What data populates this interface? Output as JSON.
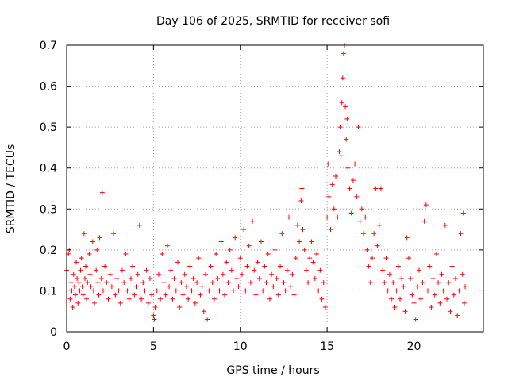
{
  "chart_data": {
    "type": "scatter",
    "title": "Day 106 of 2025, SRMTID for receiver sofi",
    "xlabel": "GPS time / hours",
    "ylabel": "SRMTID / TECUs",
    "xlim": [
      0,
      24
    ],
    "ylim": [
      0,
      0.7
    ],
    "xticks": [
      0,
      5,
      10,
      15,
      20
    ],
    "xtick_labels": [
      "0",
      "5",
      "10",
      "15",
      "20"
    ],
    "yticks": [
      0,
      0.1,
      0.2,
      0.3,
      0.4,
      0.5,
      0.6,
      0.7
    ],
    "ytick_labels": [
      "0",
      "0.1",
      "0.2",
      "0.3",
      "0.4",
      "0.5",
      "0.6",
      "0.7"
    ],
    "grid": true,
    "marker": "+",
    "color": "#ff0000",
    "series": [
      {
        "name": "SRMTID",
        "points": [
          [
            0.0,
            0.15
          ],
          [
            0.1,
            0.19
          ],
          [
            0.15,
            0.2
          ],
          [
            0.2,
            0.08
          ],
          [
            0.25,
            0.12
          ],
          [
            0.3,
            0.1
          ],
          [
            0.35,
            0.06
          ],
          [
            0.4,
            0.14
          ],
          [
            0.45,
            0.11
          ],
          [
            0.5,
            0.09
          ],
          [
            0.55,
            0.17
          ],
          [
            0.6,
            0.13
          ],
          [
            0.65,
            0.07
          ],
          [
            0.7,
            0.12
          ],
          [
            0.75,
            0.1
          ],
          [
            0.8,
            0.15
          ],
          [
            0.85,
            0.18
          ],
          [
            0.9,
            0.11
          ],
          [
            0.95,
            0.09
          ],
          [
            1.0,
            0.24
          ],
          [
            1.05,
            0.13
          ],
          [
            1.1,
            0.16
          ],
          [
            1.15,
            0.08
          ],
          [
            1.2,
            0.12
          ],
          [
            1.3,
            0.19
          ],
          [
            1.35,
            0.14
          ],
          [
            1.4,
            0.11
          ],
          [
            1.5,
            0.22
          ],
          [
            1.55,
            0.1
          ],
          [
            1.6,
            0.07
          ],
          [
            1.7,
            0.15
          ],
          [
            1.75,
            0.2
          ],
          [
            1.8,
            0.12
          ],
          [
            1.85,
            0.09
          ],
          [
            1.9,
            0.23
          ],
          [
            2.0,
            0.13
          ],
          [
            2.05,
            0.34
          ],
          [
            2.1,
            0.1
          ],
          [
            2.2,
            0.16
          ],
          [
            2.3,
            0.12
          ],
          [
            2.4,
            0.08
          ],
          [
            2.5,
            0.14
          ],
          [
            2.6,
            0.11
          ],
          [
            2.7,
            0.24
          ],
          [
            2.8,
            0.09
          ],
          [
            2.9,
            0.13
          ],
          [
            3.0,
            0.1
          ],
          [
            3.1,
            0.07
          ],
          [
            3.2,
            0.15
          ],
          [
            3.3,
            0.12
          ],
          [
            3.4,
            0.19
          ],
          [
            3.5,
            0.1
          ],
          [
            3.6,
            0.08
          ],
          [
            3.7,
            0.13
          ],
          [
            3.8,
            0.16
          ],
          [
            3.9,
            0.09
          ],
          [
            4.0,
            0.11
          ],
          [
            4.1,
            0.14
          ],
          [
            4.2,
            0.26
          ],
          [
            4.3,
            0.08
          ],
          [
            4.4,
            0.12
          ],
          [
            4.5,
            0.1
          ],
          [
            4.6,
            0.15
          ],
          [
            4.7,
            0.07
          ],
          [
            4.8,
            0.13
          ],
          [
            4.9,
            0.09
          ],
          [
            5.0,
            0.04
          ],
          [
            5.05,
            0.03
          ],
          [
            5.1,
            0.06
          ],
          [
            5.2,
            0.1
          ],
          [
            5.3,
            0.14
          ],
          [
            5.4,
            0.08
          ],
          [
            5.5,
            0.19
          ],
          [
            5.6,
            0.12
          ],
          [
            5.7,
            0.09
          ],
          [
            5.8,
            0.21
          ],
          [
            5.9,
            0.11
          ],
          [
            6.0,
            0.15
          ],
          [
            6.1,
            0.08
          ],
          [
            6.2,
            0.13
          ],
          [
            6.3,
            0.1
          ],
          [
            6.4,
            0.17
          ],
          [
            6.5,
            0.06
          ],
          [
            6.6,
            0.12
          ],
          [
            6.7,
            0.09
          ],
          [
            6.8,
            0.14
          ],
          [
            6.9,
            0.11
          ],
          [
            7.0,
            0.08
          ],
          [
            7.1,
            0.16
          ],
          [
            7.2,
            0.1
          ],
          [
            7.3,
            0.13
          ],
          [
            7.4,
            0.07
          ],
          [
            7.5,
            0.12
          ],
          [
            7.6,
            0.18
          ],
          [
            7.7,
            0.09
          ],
          [
            7.8,
            0.11
          ],
          [
            7.9,
            0.05
          ],
          [
            8.0,
            0.14
          ],
          [
            8.1,
            0.03
          ],
          [
            8.2,
            0.1
          ],
          [
            8.3,
            0.16
          ],
          [
            8.4,
            0.12
          ],
          [
            8.5,
            0.08
          ],
          [
            8.6,
            0.19
          ],
          [
            8.7,
            0.13
          ],
          [
            8.8,
            0.1
          ],
          [
            8.9,
            0.22
          ],
          [
            9.0,
            0.14
          ],
          [
            9.1,
            0.09
          ],
          [
            9.2,
            0.17
          ],
          [
            9.3,
            0.12
          ],
          [
            9.4,
            0.2
          ],
          [
            9.5,
            0.15
          ],
          [
            9.6,
            0.1
          ],
          [
            9.7,
            0.23
          ],
          [
            9.8,
            0.13
          ],
          [
            9.9,
            0.11
          ],
          [
            10.0,
            0.18
          ],
          [
            10.1,
            0.14
          ],
          [
            10.2,
            0.25
          ],
          [
            10.3,
            0.1
          ],
          [
            10.4,
            0.16
          ],
          [
            10.5,
            0.21
          ],
          [
            10.6,
            0.12
          ],
          [
            10.7,
            0.27
          ],
          [
            10.8,
            0.15
          ],
          [
            10.9,
            0.09
          ],
          [
            11.0,
            0.17
          ],
          [
            11.1,
            0.13
          ],
          [
            11.2,
            0.22
          ],
          [
            11.3,
            0.1
          ],
          [
            11.4,
            0.16
          ],
          [
            11.5,
            0.12
          ],
          [
            11.6,
            0.19
          ],
          [
            11.7,
            0.08
          ],
          [
            11.8,
            0.14
          ],
          [
            11.9,
            0.11
          ],
          [
            12.0,
            0.2
          ],
          [
            12.1,
            0.13
          ],
          [
            12.2,
            0.09
          ],
          [
            12.3,
            0.16
          ],
          [
            12.4,
            0.24
          ],
          [
            12.5,
            0.12
          ],
          [
            12.6,
            0.1
          ],
          [
            12.7,
            0.15
          ],
          [
            12.8,
            0.28
          ],
          [
            12.9,
            0.11
          ],
          [
            13.0,
            0.14
          ],
          [
            13.1,
            0.09
          ],
          [
            13.2,
            0.18
          ],
          [
            13.3,
            0.26
          ],
          [
            13.4,
            0.22
          ],
          [
            13.5,
            0.32
          ],
          [
            13.55,
            0.35
          ],
          [
            13.6,
            0.25
          ],
          [
            13.7,
            0.2
          ],
          [
            13.8,
            0.15
          ],
          [
            13.9,
            0.12
          ],
          [
            14.0,
            0.18
          ],
          [
            14.1,
            0.22
          ],
          [
            14.2,
            0.17
          ],
          [
            14.3,
            0.13
          ],
          [
            14.4,
            0.19
          ],
          [
            14.5,
            0.1
          ],
          [
            14.6,
            0.15
          ],
          [
            14.7,
            0.08
          ],
          [
            14.8,
            0.12
          ],
          [
            14.9,
            0.06
          ],
          [
            15.0,
            0.28
          ],
          [
            15.05,
            0.41
          ],
          [
            15.1,
            0.33
          ],
          [
            15.2,
            0.25
          ],
          [
            15.3,
            0.36
          ],
          [
            15.4,
            0.3
          ],
          [
            15.5,
            0.38
          ],
          [
            15.6,
            0.28
          ],
          [
            15.7,
            0.44
          ],
          [
            15.75,
            0.5
          ],
          [
            15.8,
            0.43
          ],
          [
            15.85,
            0.56
          ],
          [
            15.9,
            0.62
          ],
          [
            15.95,
            0.68
          ],
          [
            16.0,
            0.7
          ],
          [
            16.05,
            0.55
          ],
          [
            16.1,
            0.47
          ],
          [
            16.15,
            0.52
          ],
          [
            16.2,
            0.4
          ],
          [
            16.3,
            0.35
          ],
          [
            16.4,
            0.29
          ],
          [
            16.5,
            0.37
          ],
          [
            16.6,
            0.41
          ],
          [
            16.7,
            0.33
          ],
          [
            16.8,
            0.5
          ],
          [
            16.9,
            0.27
          ],
          [
            17.0,
            0.3
          ],
          [
            17.1,
            0.24
          ],
          [
            17.2,
            0.28
          ],
          [
            17.3,
            0.2
          ],
          [
            17.4,
            0.16
          ],
          [
            17.5,
            0.12
          ],
          [
            17.6,
            0.18
          ],
          [
            17.7,
            0.24
          ],
          [
            17.8,
            0.35
          ],
          [
            17.9,
            0.21
          ],
          [
            18.0,
            0.26
          ],
          [
            18.1,
            0.35
          ],
          [
            18.2,
            0.15
          ],
          [
            18.3,
            0.12
          ],
          [
            18.4,
            0.18
          ],
          [
            18.5,
            0.1
          ],
          [
            18.6,
            0.14
          ],
          [
            18.7,
            0.08
          ],
          [
            18.8,
            0.12
          ],
          [
            18.9,
            0.06
          ],
          [
            19.0,
            0.1
          ],
          [
            19.1,
            0.16
          ],
          [
            19.2,
            0.08
          ],
          [
            19.3,
            0.13
          ],
          [
            19.4,
            0.11
          ],
          [
            19.5,
            0.05
          ],
          [
            19.6,
            0.23
          ],
          [
            19.7,
            0.18
          ],
          [
            19.8,
            0.13
          ],
          [
            19.9,
            0.09
          ],
          [
            20.0,
            0.07
          ],
          [
            20.1,
            0.03
          ],
          [
            20.2,
            0.11
          ],
          [
            20.3,
            0.15
          ],
          [
            20.4,
            0.08
          ],
          [
            20.5,
            0.12
          ],
          [
            20.6,
            0.27
          ],
          [
            20.7,
            0.31
          ],
          [
            20.8,
            0.1
          ],
          [
            20.9,
            0.16
          ],
          [
            21.0,
            0.06
          ],
          [
            21.1,
            0.13
          ],
          [
            21.2,
            0.09
          ],
          [
            21.3,
            0.19
          ],
          [
            21.4,
            0.12
          ],
          [
            21.5,
            0.07
          ],
          [
            21.6,
            0.14
          ],
          [
            21.7,
            0.1
          ],
          [
            21.8,
            0.26
          ],
          [
            21.9,
            0.08
          ],
          [
            22.0,
            0.12
          ],
          [
            22.1,
            0.05
          ],
          [
            22.2,
            0.16
          ],
          [
            22.3,
            0.09
          ],
          [
            22.4,
            0.13
          ],
          [
            22.5,
            0.04
          ],
          [
            22.6,
            0.1
          ],
          [
            22.7,
            0.24
          ],
          [
            22.8,
            0.14
          ],
          [
            22.85,
            0.29
          ],
          [
            22.9,
            0.07
          ],
          [
            22.95,
            0.11
          ]
        ]
      }
    ]
  }
}
